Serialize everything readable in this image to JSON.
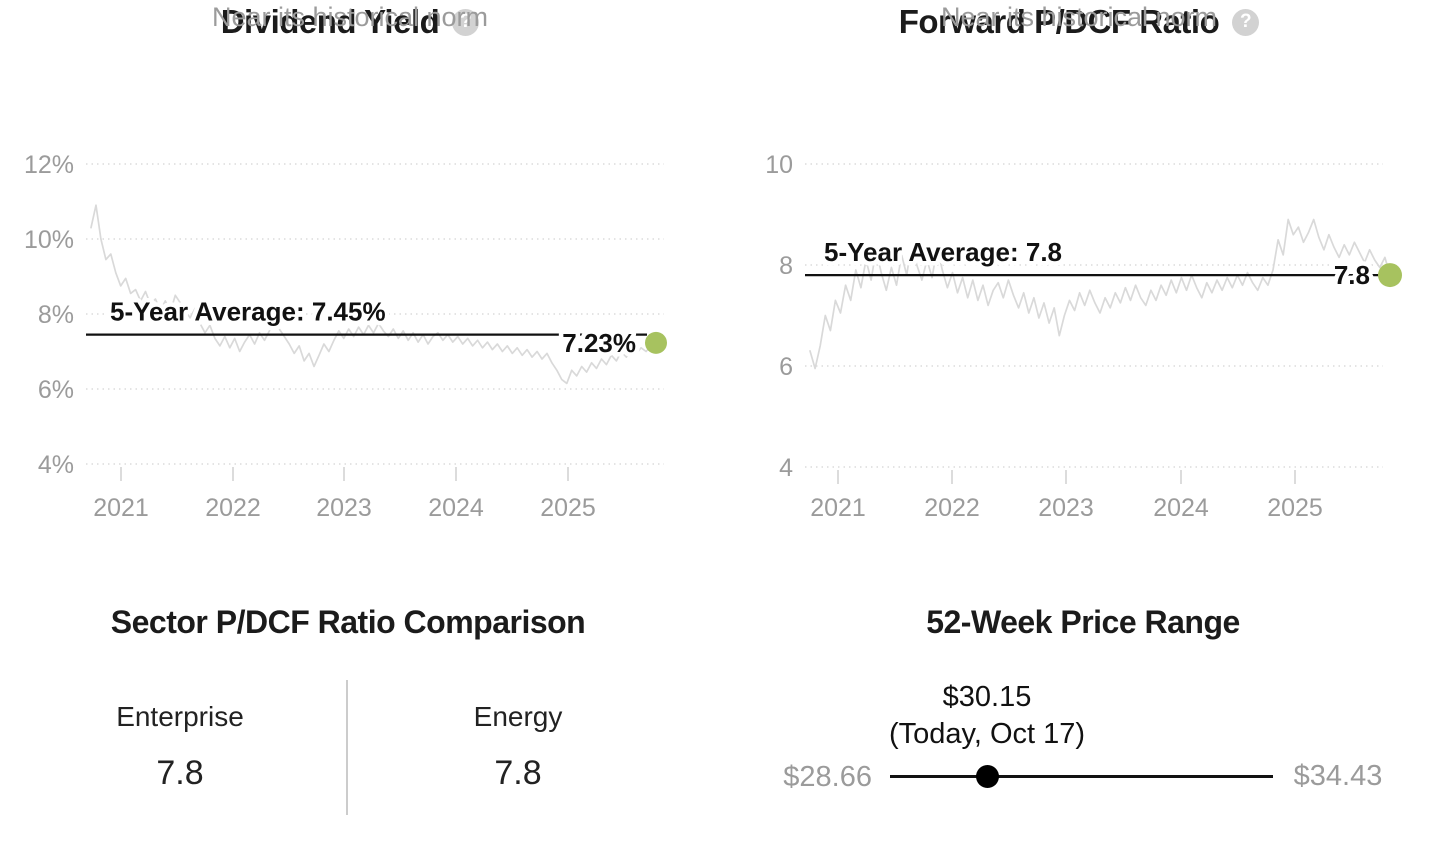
{
  "colors": {
    "accent_green": "#a7c25f",
    "text_dark": "#1b1b1b",
    "text_gray": "#9b9b9b",
    "gridline": "#d4d4d4",
    "sparkline": "#d9d9d9",
    "help_icon_bg": "#d2d2d2",
    "average_line": "#111111",
    "slider": "#000000"
  },
  "charts": {
    "dividend_yield": {
      "title": "Dividend Yield",
      "help_icon": "?",
      "subtitle": "Near its historical norm"
    },
    "forward_pdcf": {
      "title": "Forward P/DCF Ratio",
      "help_icon": "?",
      "subtitle": "Near its historical norm"
    }
  },
  "chart_data": [
    {
      "type": "line",
      "title": "Dividend Yield",
      "subtitle": "Near its historical norm",
      "series_name": "Dividend Yield (%)",
      "x_ticks": [
        "2021",
        "2022",
        "2023",
        "2024",
        "2025"
      ],
      "y_ticks": [
        "12%",
        "10%",
        "8%",
        "6%",
        "4%"
      ],
      "y_range": [
        4,
        12
      ],
      "grid": "dotted horizontal gridlines",
      "legend": "none",
      "five_year_average": 7.45,
      "average_label": "5-Year Average: 7.45%",
      "current_value": 7.23,
      "current_label": "7.23%",
      "values": [
        10.3,
        10.9,
        10.0,
        9.45,
        9.6,
        9.1,
        8.75,
        8.95,
        8.55,
        8.65,
        8.35,
        8.6,
        8.25,
        8.4,
        8.1,
        8.35,
        8.05,
        8.5,
        8.3,
        8.1,
        7.9,
        8.15,
        7.75,
        7.5,
        7.7,
        7.35,
        7.15,
        7.4,
        7.1,
        7.35,
        7.0,
        7.25,
        7.45,
        7.2,
        7.5,
        7.3,
        7.55,
        7.85,
        7.6,
        7.4,
        7.2,
        6.95,
        7.15,
        6.75,
        6.95,
        6.6,
        6.9,
        7.2,
        7.0,
        7.3,
        7.55,
        7.35,
        7.6,
        7.4,
        7.65,
        7.45,
        7.7,
        7.5,
        7.75,
        7.55,
        7.4,
        7.6,
        7.35,
        7.55,
        7.3,
        7.5,
        7.25,
        7.45,
        7.2,
        7.4,
        7.5,
        7.3,
        7.45,
        7.25,
        7.4,
        7.2,
        7.35,
        7.15,
        7.3,
        7.1,
        7.25,
        7.05,
        7.2,
        7.0,
        7.15,
        6.95,
        7.1,
        6.9,
        7.05,
        6.85,
        7.0,
        6.8,
        6.95,
        6.7,
        6.5,
        6.25,
        6.15,
        6.5,
        6.35,
        6.6,
        6.45,
        6.7,
        6.55,
        6.8,
        6.65,
        6.9,
        6.75,
        7.0,
        6.85,
        7.05,
        6.95,
        7.1,
        7.0,
        7.15,
        7.23
      ]
    },
    {
      "type": "line",
      "title": "Forward P/DCF Ratio",
      "subtitle": "Near its historical norm",
      "series_name": "Forward P/DCF Ratio",
      "x_ticks": [
        "2021",
        "2022",
        "2023",
        "2024",
        "2025"
      ],
      "y_ticks": [
        "10",
        "8",
        "6",
        "4"
      ],
      "y_range": [
        4,
        10
      ],
      "grid": "dotted horizontal gridlines",
      "legend": "none",
      "five_year_average": 7.8,
      "average_label": "5-Year Average: 7.8",
      "current_value": 7.8,
      "current_label": "7.8",
      "values": [
        6.3,
        5.95,
        6.4,
        7.0,
        6.7,
        7.3,
        7.05,
        7.6,
        7.3,
        7.9,
        7.55,
        8.1,
        7.7,
        8.3,
        7.85,
        7.5,
        7.95,
        7.6,
        8.2,
        7.8,
        8.45,
        8.0,
        7.7,
        8.1,
        7.75,
        8.35,
        7.9,
        7.55,
        7.85,
        7.45,
        7.75,
        7.35,
        7.7,
        7.3,
        7.6,
        7.2,
        7.5,
        7.65,
        7.35,
        7.7,
        7.4,
        7.15,
        7.45,
        7.05,
        7.35,
        6.95,
        7.25,
        6.85,
        7.15,
        6.6,
        7.0,
        7.3,
        7.1,
        7.45,
        7.2,
        7.5,
        7.25,
        7.05,
        7.35,
        7.15,
        7.45,
        7.25,
        7.55,
        7.3,
        7.6,
        7.35,
        7.2,
        7.5,
        7.3,
        7.6,
        7.4,
        7.7,
        7.45,
        7.75,
        7.5,
        7.8,
        7.55,
        7.35,
        7.65,
        7.45,
        7.7,
        7.5,
        7.75,
        7.55,
        7.8,
        7.6,
        7.85,
        7.65,
        7.5,
        7.75,
        7.6,
        7.9,
        8.5,
        8.2,
        8.9,
        8.6,
        8.75,
        8.45,
        8.65,
        8.9,
        8.55,
        8.3,
        8.6,
        8.35,
        8.15,
        8.4,
        8.2,
        8.45,
        8.25,
        8.05,
        8.3,
        8.1,
        7.95,
        8.15,
        7.8
      ]
    }
  ],
  "sector_comparison": {
    "title": "Sector P/DCF Ratio Comparison",
    "columns": [
      {
        "label": "Enterprise",
        "value": "7.8"
      },
      {
        "label": "Energy",
        "value": "7.8"
      }
    ]
  },
  "price_range": {
    "title": "52-Week Price Range",
    "current_price": "$30.15",
    "current_note": "(Today, Oct 17)",
    "low": "$28.66",
    "high": "$34.43"
  }
}
